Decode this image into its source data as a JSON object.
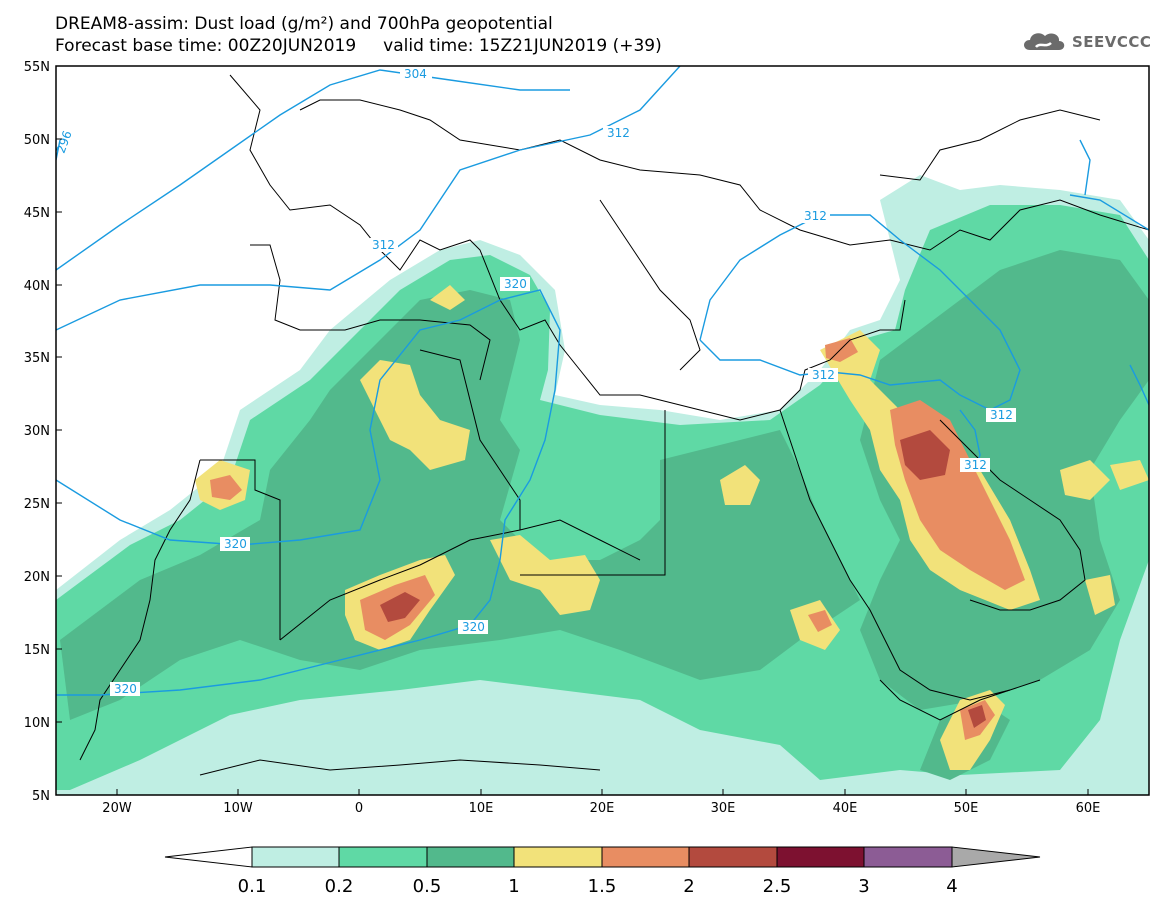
{
  "title": {
    "line1": "DREAM8-assim: Dust load (g/m²) and 700hPa geopotential",
    "line2": "Forecast base time: 00Z20JUN2019     valid time: 15Z21JUN2019 (+39)"
  },
  "logo": {
    "text": "SEEVCCC",
    "icon": "cloud-logo-icon"
  },
  "axes": {
    "lon_labels": [
      "20W",
      "10W",
      "0",
      "10E",
      "20E",
      "30E",
      "40E",
      "50E",
      "60E"
    ],
    "lat_labels": [
      "55N",
      "50N",
      "45N",
      "40N",
      "35N",
      "30N",
      "25N",
      "20N",
      "15N",
      "10N",
      "5N"
    ]
  },
  "contour_labels": [
    "304",
    "312",
    "312",
    "312",
    "312",
    "320",
    "320",
    "320",
    "320",
    "312",
    "312",
    "296"
  ],
  "colorbar": {
    "labels": [
      "0.1",
      "0.2",
      "0.5",
      "1",
      "1.5",
      "2",
      "2.5",
      "3",
      "4"
    ],
    "colors": [
      "#ffffff",
      "#bfeee3",
      "#5fd9a5",
      "#52b98c",
      "#f2e27a",
      "#e88d62",
      "#b34a3e",
      "#7d1130",
      "#8c5c95",
      "#a9a9a9"
    ]
  },
  "palette": {
    "contour": "#1a9be0",
    "land_outline": "#000000"
  }
}
